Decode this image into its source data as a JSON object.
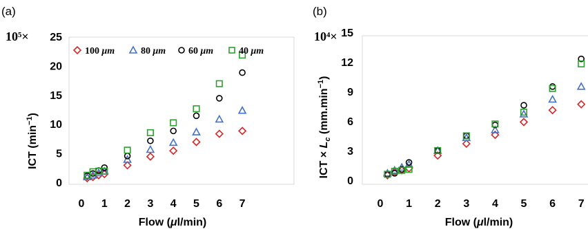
{
  "chart_data": [
    {
      "type": "scatter",
      "panel_label": "(a)",
      "y_multiplier": "10⁵×",
      "ylabel": "ICT (min⁻¹)",
      "xlabel": "Flow (μl/min)",
      "xlim": [
        0,
        7.5
      ],
      "ylim": [
        0,
        25
      ],
      "x_ticks": [
        "0",
        "1",
        "2",
        "3",
        "4",
        "5",
        "6",
        "7"
      ],
      "y_ticks": [
        "0",
        "5",
        "10",
        "15",
        "20",
        "25"
      ],
      "legend_position": "top-left inside",
      "series": [
        {
          "name": "100 μm",
          "marker": "diamond",
          "color": "#d62728",
          "points": [
            [
              0.25,
              0.7
            ],
            [
              0.5,
              0.9
            ],
            [
              0.75,
              1.2
            ],
            [
              1.0,
              1.4
            ],
            [
              2,
              2.9
            ],
            [
              3,
              4.4
            ],
            [
              4,
              5.4
            ],
            [
              5,
              6.9
            ],
            [
              6,
              8.3
            ],
            [
              7,
              8.8
            ]
          ]
        },
        {
          "name": "80 μm",
          "marker": "triangle",
          "color": "#4472c4",
          "points": [
            [
              0.25,
              0.9
            ],
            [
              0.5,
              1.2
            ],
            [
              0.75,
              1.6
            ],
            [
              1.0,
              1.9
            ],
            [
              2,
              3.9
            ],
            [
              3,
              5.6
            ],
            [
              4,
              6.8
            ],
            [
              5,
              8.6
            ],
            [
              6,
              10.8
            ],
            [
              7,
              12.3
            ]
          ]
        },
        {
          "name": "60 μm",
          "marker": "circle",
          "color": "#000000",
          "points": [
            [
              0.25,
              1.1
            ],
            [
              0.5,
              1.5
            ],
            [
              0.75,
              2.0
            ],
            [
              1.0,
              2.5
            ],
            [
              2,
              4.5
            ],
            [
              3,
              7.1
            ],
            [
              4,
              8.8
            ],
            [
              5,
              11.4
            ],
            [
              6,
              14.4
            ],
            [
              7,
              18.8
            ]
          ]
        },
        {
          "name": "40 μm",
          "marker": "square",
          "color": "#2ca02c",
          "points": [
            [
              0.25,
              1.2
            ],
            [
              0.5,
              1.8
            ],
            [
              0.75,
              1.9
            ],
            [
              1.0,
              1.9
            ],
            [
              2,
              5.5
            ],
            [
              3,
              8.5
            ],
            [
              4,
              10.2
            ],
            [
              5,
              12.6
            ],
            [
              6,
              16.9
            ],
            [
              7,
              21.8
            ]
          ]
        }
      ]
    },
    {
      "type": "scatter",
      "panel_label": "(b)",
      "y_multiplier": "10⁴×",
      "ylabel": "ICT × L_c (mm.min⁻¹)",
      "xlabel": "Flow (μl/min)",
      "xlim": [
        0,
        7.5
      ],
      "ylim": [
        0,
        15
      ],
      "x_ticks": [
        "0",
        "1",
        "2",
        "3",
        "4",
        "5",
        "6",
        "7"
      ],
      "y_ticks": [
        "0",
        "3",
        "6",
        "9",
        "12",
        "15"
      ],
      "series": [
        {
          "name": "100 μm",
          "marker": "diamond",
          "color": "#d62728",
          "points": [
            [
              0.25,
              0.5
            ],
            [
              0.5,
              0.8
            ],
            [
              0.75,
              1.0
            ],
            [
              1.0,
              1.2
            ],
            [
              2,
              2.5
            ],
            [
              3,
              3.7
            ],
            [
              4,
              4.6
            ],
            [
              5,
              5.9
            ],
            [
              6,
              7.1
            ],
            [
              7,
              7.7
            ]
          ]
        },
        {
          "name": "80 μm",
          "marker": "triangle",
          "color": "#4472c4",
          "points": [
            [
              0.25,
              0.7
            ],
            [
              0.5,
              1.0
            ],
            [
              0.75,
              1.3
            ],
            [
              1.0,
              1.6
            ],
            [
              2,
              3.0
            ],
            [
              3,
              4.3
            ],
            [
              4,
              5.1
            ],
            [
              5,
              6.7
            ],
            [
              6,
              8.2
            ],
            [
              7,
              9.5
            ]
          ]
        },
        {
          "name": "60 μm",
          "marker": "circle",
          "color": "#000000",
          "points": [
            [
              0.25,
              0.6
            ],
            [
              0.5,
              0.7
            ],
            [
              0.75,
              1.1
            ],
            [
              1.0,
              1.8
            ],
            [
              2,
              3.0
            ],
            [
              3,
              4.5
            ],
            [
              4,
              5.6
            ],
            [
              5,
              7.6
            ],
            [
              6,
              9.5
            ],
            [
              7,
              12.3
            ]
          ]
        },
        {
          "name": "40 μm",
          "marker": "square",
          "color": "#2ca02c",
          "points": [
            [
              0.25,
              0.6
            ],
            [
              0.5,
              0.9
            ],
            [
              0.75,
              1.0
            ],
            [
              1.0,
              1.1
            ],
            [
              2,
              3.0
            ],
            [
              3,
              4.5
            ],
            [
              4,
              5.7
            ],
            [
              5,
              6.9
            ],
            [
              6,
              9.3
            ],
            [
              7,
              11.8
            ]
          ]
        }
      ]
    }
  ]
}
